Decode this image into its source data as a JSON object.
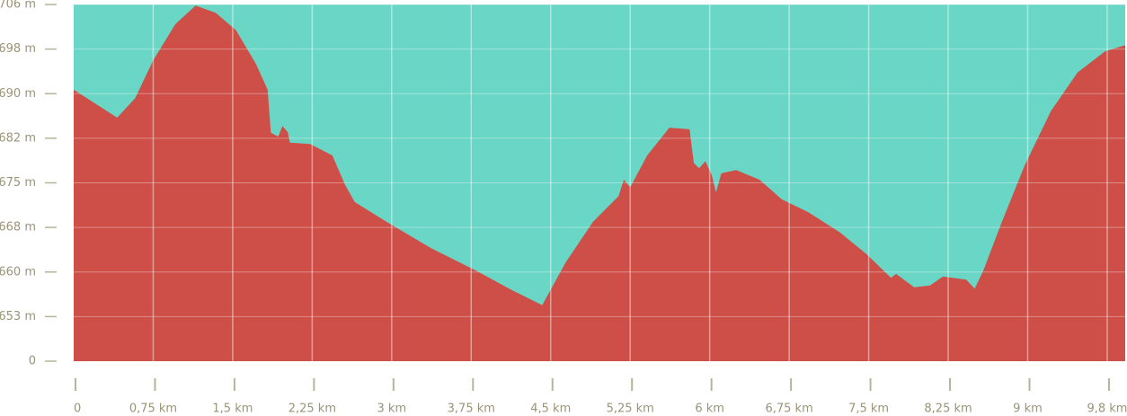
{
  "chart_data": {
    "type": "area",
    "color": "#cd4f48",
    "background": "#6ad6c6",
    "grid": true,
    "x": [
      0,
      0.19,
      0.41,
      0.58,
      0.75,
      0.96,
      1.15,
      1.34,
      1.53,
      1.72,
      1.83,
      1.86,
      1.93,
      1.97,
      2.02,
      2.04,
      2.23,
      2.44,
      2.56,
      2.65,
      2.95,
      3.37,
      3.8,
      4.14,
      4.42,
      4.64,
      4.9,
      5.14,
      5.19,
      5.25,
      5.41,
      5.62,
      5.81,
      5.85,
      5.9,
      5.96,
      6.02,
      6.06,
      6.11,
      6.25,
      6.47,
      6.68,
      6.93,
      7.23,
      7.48,
      7.71,
      7.76,
      7.93,
      8.08,
      8.2,
      8.42,
      8.5,
      8.58,
      8.75,
      8.97,
      9.22,
      9.47,
      9.73,
      9.92
    ],
    "values": [
      690.7,
      688.4,
      685.7,
      689.2,
      696,
      702.5,
      705.8,
      704.5,
      701.4,
      695.3,
      690.7,
      683,
      682.3,
      684.2,
      683.1,
      681.3,
      681.1,
      679.3,
      674.7,
      672,
      668.9,
      664.3,
      660.2,
      657.1,
      654.8,
      661.7,
      668.9,
      672.9,
      675.5,
      674.3,
      679.3,
      683.9,
      683.6,
      678.1,
      677.3,
      678.4,
      676.2,
      673.5,
      676.5,
      677,
      675.5,
      672.4,
      670.4,
      667.1,
      663.2,
      659.1,
      659.7,
      657.6,
      657.9,
      659.3,
      658.8,
      657.4,
      660.2,
      668.6,
      677.7,
      686.9,
      693.8,
      697.6,
      698.7
    ],
    "xlim": [
      0,
      9.92
    ],
    "xticks": [
      0,
      {
        "value": 0.75,
        "label": "0,75 km"
      },
      {
        "value": 1.5,
        "label": "1,5 km"
      },
      {
        "value": 2.25,
        "label": "2,25 km"
      },
      {
        "value": 3,
        "label": "3 km"
      },
      {
        "value": 3.75,
        "label": "3,75 km"
      },
      {
        "value": 4.5,
        "label": "4,5 km"
      },
      {
        "value": 5.25,
        "label": "5,25 km"
      },
      {
        "value": 6,
        "label": "6 km"
      },
      {
        "value": 6.75,
        "label": "6,75 km"
      },
      {
        "value": 7.5,
        "label": "7,5 km"
      },
      {
        "value": 8.25,
        "label": "8,25 km"
      },
      {
        "value": 9,
        "label": "9 km"
      },
      {
        "value": 9.75,
        "label": "9,8 km"
      }
    ],
    "ylim": [
      0,
      706
    ],
    "yticks": [
      {
        "value": 706,
        "label": "706 m"
      },
      {
        "value": 698,
        "label": "698 m"
      },
      {
        "value": 690,
        "label": "690 m"
      },
      {
        "value": 682,
        "label": "682 m"
      },
      {
        "value": 675,
        "label": "675 m"
      },
      {
        "value": 668,
        "label": "668 m"
      },
      {
        "value": 660,
        "label": "660 m"
      },
      {
        "value": 653,
        "label": "653 m"
      },
      0
    ]
  }
}
